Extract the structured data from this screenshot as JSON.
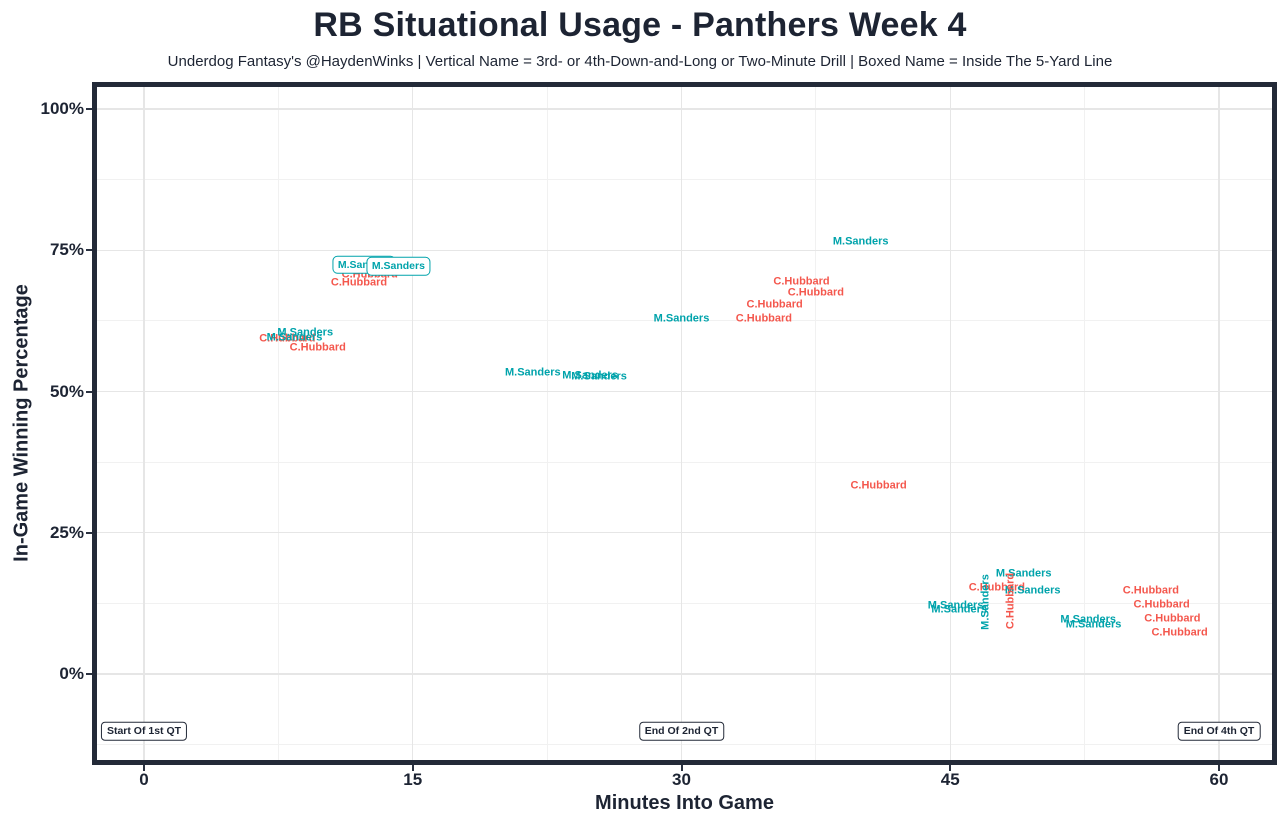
{
  "header": {
    "title": "RB Situational Usage - Panthers Week 4",
    "subtitle": "Underdog Fantasy's @HaydenWinks | Vertical Name = 3rd- or 4th-Down-and-Long or Two-Minute Drill | Boxed Name = Inside The 5-Yard Line"
  },
  "colors": {
    "sanders_teal": "#00A3AB",
    "hubbard_red": "#F4574D",
    "axis_text": "#1d2433",
    "plot_border": "#232a38",
    "tick_mark": "#2a3140",
    "grid_major": "#e6e6e6",
    "grid_minor": "#f1f1f1"
  },
  "chart_data": {
    "type": "scatter",
    "title": "RB Situational Usage - Panthers Week 4",
    "subtitle": "Underdog Fantasy's @HaydenWinks | Vertical Name = 3rd- or 4th-Down-and-Long or Two-Minute Drill | Boxed Name = Inside The 5-Yard Line",
    "xlabel": "Minutes Into Game",
    "ylabel": "In-Game Winning Percentage",
    "xlim": [
      -2.7,
      63.1
    ],
    "ylim": [
      -15.6,
      104.3
    ],
    "x_ticks": [
      0,
      15,
      30,
      45,
      60
    ],
    "x_minor_gridlines": [
      7.5,
      22.5,
      37.5,
      52.5
    ],
    "y_ticks": [
      0,
      25,
      50,
      75,
      100
    ],
    "y_tick_suffix": "%",
    "y_minor_gridlines": [
      -12.5,
      12.5,
      37.5,
      62.5,
      87.5
    ],
    "grid": true,
    "legend_position": "none",
    "series": [
      {
        "name": "M.Sanders",
        "color": "#00A3AB"
      },
      {
        "name": "C.Hubbard",
        "color": "#F4574D"
      }
    ],
    "point_style_meaning": {
      "vertical": "3rd- or 4th-Down-and-Long or Two-Minute Drill",
      "boxed": "Inside The 5-Yard Line"
    },
    "points": [
      {
        "player": "C.Hubbard",
        "x": 12.6,
        "y": 70.6,
        "style": "plain"
      },
      {
        "player": "C.Hubbard",
        "x": 12.0,
        "y": 69.2,
        "style": "plain"
      },
      {
        "player": "M.Sanders",
        "x": 9.0,
        "y": 60.4,
        "style": "plain"
      },
      {
        "player": "C.Hubbard",
        "x": 8.0,
        "y": 59.3,
        "style": "plain"
      },
      {
        "player": "M.Sanders",
        "x": 8.4,
        "y": 59.5,
        "style": "plain"
      },
      {
        "player": "C.Hubbard",
        "x": 9.7,
        "y": 57.7,
        "style": "plain"
      },
      {
        "player": "M.Sanders",
        "x": 21.7,
        "y": 53.3,
        "style": "plain"
      },
      {
        "player": "M.Sanders",
        "x": 24.9,
        "y": 52.7,
        "style": "plain"
      },
      {
        "player": "M.Sanders",
        "x": 25.4,
        "y": 52.6,
        "style": "plain"
      },
      {
        "player": "M.Sanders",
        "x": 30.0,
        "y": 62.8,
        "style": "plain"
      },
      {
        "player": "C.Hubbard",
        "x": 34.6,
        "y": 62.8,
        "style": "plain"
      },
      {
        "player": "C.Hubbard",
        "x": 35.2,
        "y": 65.3,
        "style": "plain"
      },
      {
        "player": "C.Hubbard",
        "x": 36.7,
        "y": 69.4,
        "style": "plain"
      },
      {
        "player": "C.Hubbard",
        "x": 37.5,
        "y": 67.4,
        "style": "plain"
      },
      {
        "player": "M.Sanders",
        "x": 40.0,
        "y": 76.5,
        "style": "plain"
      },
      {
        "player": "C.Hubbard",
        "x": 41.0,
        "y": 33.3,
        "style": "plain"
      },
      {
        "player": "M.Sanders",
        "x": 45.3,
        "y": 12.0,
        "style": "plain"
      },
      {
        "player": "M.Sanders",
        "x": 45.5,
        "y": 11.3,
        "style": "plain"
      },
      {
        "player": "C.Hubbard",
        "x": 47.6,
        "y": 15.2,
        "style": "plain"
      },
      {
        "player": "M.Sanders",
        "x": 49.1,
        "y": 17.7,
        "style": "plain"
      },
      {
        "player": "M.Sanders",
        "x": 49.6,
        "y": 14.7,
        "style": "plain"
      },
      {
        "player": "M.Sanders",
        "x": 52.7,
        "y": 9.6,
        "style": "plain"
      },
      {
        "player": "M.Sanders",
        "x": 53.0,
        "y": 8.7,
        "style": "plain"
      },
      {
        "player": "C.Hubbard",
        "x": 56.2,
        "y": 14.7,
        "style": "plain"
      },
      {
        "player": "C.Hubbard",
        "x": 56.8,
        "y": 12.2,
        "style": "plain"
      },
      {
        "player": "C.Hubbard",
        "x": 57.4,
        "y": 9.7,
        "style": "plain"
      },
      {
        "player": "C.Hubbard",
        "x": 57.8,
        "y": 7.3,
        "style": "plain"
      },
      {
        "player": "M.Sanders",
        "x": 47.0,
        "y": 12.7,
        "style": "vertical"
      },
      {
        "player": "C.Hubbard",
        "x": 48.4,
        "y": 12.9,
        "style": "vertical"
      },
      {
        "player": "M.Sanders",
        "x": 12.3,
        "y": 72.4,
        "style": "boxed"
      },
      {
        "player": "M.Sanders",
        "x": 14.2,
        "y": 72.2,
        "style": "boxed"
      }
    ],
    "annotations": [
      {
        "label": "Start Of 1st QT",
        "x": 0,
        "y": -10.1
      },
      {
        "label": "End Of 2nd QT",
        "x": 30,
        "y": -10.1
      },
      {
        "label": "End Of 4th QT",
        "x": 60,
        "y": -10.1
      }
    ]
  }
}
